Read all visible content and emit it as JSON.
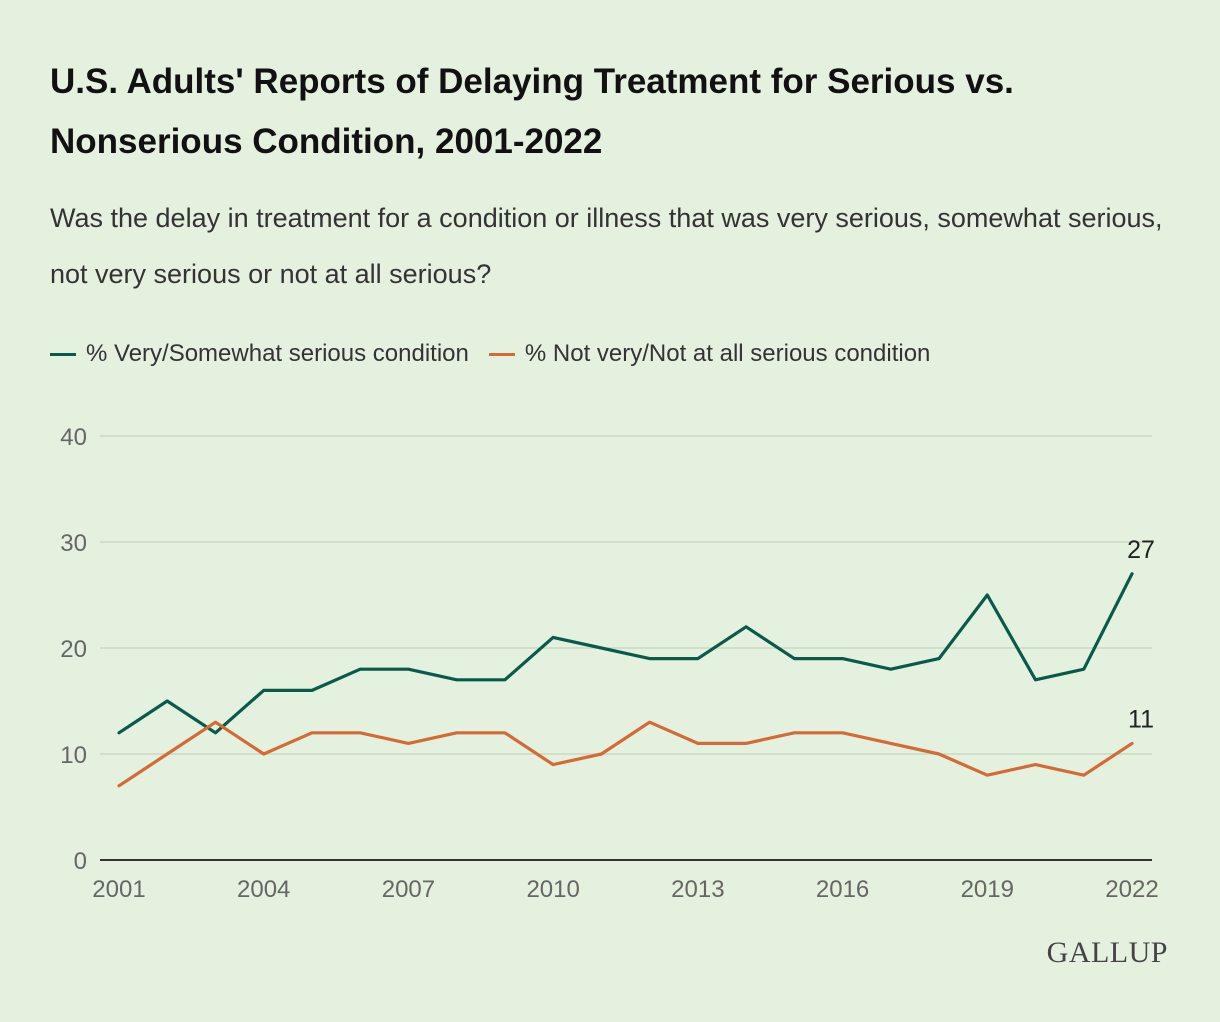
{
  "header": {
    "title": "U.S. Adults' Reports of Delaying Treatment for Serious vs. Nonserious Condition, 2001-2022",
    "subtitle": "Was the delay in treatment for a condition or illness that was very serious, somewhat serious, not very serious or not at all serious?"
  },
  "branding": {
    "logo": "GALLUP"
  },
  "colors": {
    "serious": "#0a5a4a",
    "nonserious": "#d66a35",
    "grid": "#c9d9c3",
    "axis": "#333333"
  },
  "chart_data": {
    "type": "line",
    "title": "U.S. Adults' Reports of Delaying Treatment for Serious vs. Nonserious Condition, 2001-2022",
    "subtitle": "Was the delay in treatment for a condition or illness that was very serious, somewhat serious, not very serious or not at all serious?",
    "xlabel": "",
    "ylabel": "",
    "x": [
      2001,
      2002,
      2003,
      2004,
      2005,
      2006,
      2007,
      2008,
      2009,
      2010,
      2011,
      2012,
      2013,
      2014,
      2015,
      2016,
      2017,
      2018,
      2019,
      2020,
      2021,
      2022
    ],
    "xticks": [
      "2001",
      "2004",
      "2007",
      "2010",
      "2013",
      "2016",
      "2019",
      "2022"
    ],
    "ylim": [
      0,
      40
    ],
    "yticks": [
      "0",
      "10",
      "20",
      "30",
      "40"
    ],
    "grid": true,
    "legend_position": "top-left",
    "series": [
      {
        "name": "% Very/Somewhat serious condition",
        "color": "#0a5a4a",
        "values": [
          12,
          15,
          12,
          16,
          16,
          18,
          18,
          17,
          17,
          21,
          20,
          19,
          19,
          22,
          19,
          19,
          18,
          19,
          25,
          17,
          18,
          27
        ],
        "end_label": "27"
      },
      {
        "name": "% Not very/Not at all serious condition",
        "color": "#d66a35",
        "values": [
          7,
          10,
          13,
          10,
          12,
          12,
          11,
          12,
          12,
          9,
          10,
          13,
          11,
          11,
          12,
          12,
          11,
          10,
          8,
          9,
          8,
          11
        ],
        "end_label": "11"
      }
    ]
  }
}
